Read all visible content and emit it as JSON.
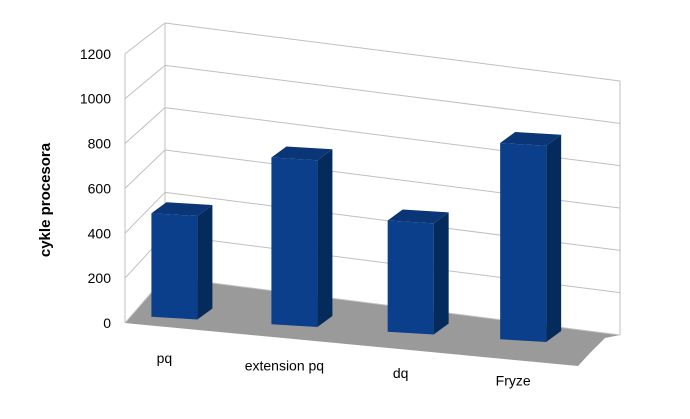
{
  "chart_data": {
    "type": "bar",
    "title": "",
    "xlabel": "",
    "ylabel": "cykle procesora",
    "categories": [
      "pq",
      "extension pq",
      "dq",
      "Fryze"
    ],
    "series": [
      {
        "values": [
          475,
          765,
          510,
          900
        ]
      }
    ],
    "ylim": [
      0,
      1200
    ],
    "yticks": [
      "0",
      "200",
      "400",
      "600",
      "800",
      "1000",
      "1200"
    ],
    "grid": true,
    "legend": "none",
    "style": "3d-perspective",
    "colors": {
      "bar_front": "#0B3F8C",
      "bar_top": "#0A3677",
      "bar_side": "#052B5C",
      "floor": "#9A9A9A",
      "grid": "#BFBFBF"
    }
  }
}
